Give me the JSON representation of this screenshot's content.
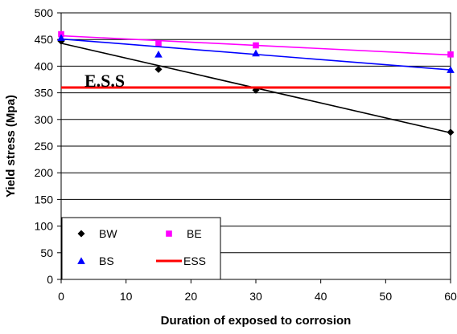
{
  "chart_data": {
    "type": "line",
    "title": "",
    "xlabel": "Duration of exposed to corrosion",
    "ylabel": "Yield stress (Mpa)",
    "xlim": [
      0,
      60
    ],
    "ylim": [
      0,
      500
    ],
    "x_ticks": [
      "0",
      "10",
      "20",
      "30",
      "40",
      "50",
      "60"
    ],
    "y_ticks": [
      "0",
      "50",
      "100",
      "150",
      "200",
      "250",
      "300",
      "350",
      "400",
      "450",
      "500"
    ],
    "grid": "horizontal",
    "legend_position": "bottom-left",
    "annotation": "E.S.S",
    "series": [
      {
        "name": "BW",
        "marker": "diamond",
        "color": "#000000",
        "points": [
          [
            0,
            447
          ],
          [
            15,
            394
          ],
          [
            30,
            355
          ],
          [
            60,
            276
          ]
        ],
        "trend": [
          [
            0,
            443
          ],
          [
            60,
            275
          ]
        ]
      },
      {
        "name": "BE",
        "marker": "square",
        "color": "#ff00ff",
        "points": [
          [
            0,
            460
          ],
          [
            15,
            443
          ],
          [
            30,
            439
          ],
          [
            60,
            422
          ]
        ],
        "trend": [
          [
            0,
            457
          ],
          [
            60,
            421
          ]
        ]
      },
      {
        "name": "BS",
        "marker": "triangle",
        "color": "#0000ff",
        "points": [
          [
            0,
            453
          ],
          [
            15,
            422
          ],
          [
            30,
            424
          ],
          [
            60,
            393
          ]
        ],
        "trend": [
          [
            0,
            451
          ],
          [
            60,
            393
          ]
        ]
      },
      {
        "name": "ESS",
        "marker": "none",
        "color": "#ff0000",
        "points": [],
        "trend": [
          [
            0,
            360
          ],
          [
            60,
            360
          ]
        ]
      }
    ]
  }
}
